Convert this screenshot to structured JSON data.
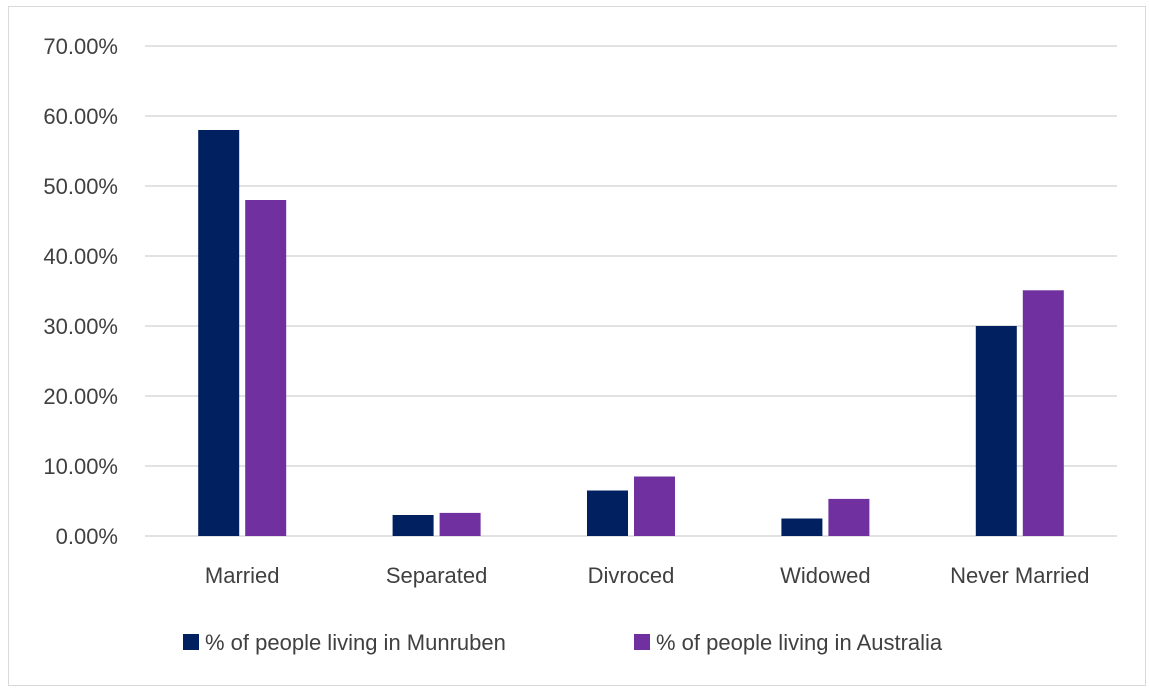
{
  "chart_data": {
    "type": "bar",
    "title": "",
    "xlabel": "",
    "ylabel": "",
    "ylim": [
      0,
      0.7
    ],
    "y_ticks": [
      {
        "value": 0.0,
        "label": "0.00%"
      },
      {
        "value": 0.1,
        "label": "10.00%"
      },
      {
        "value": 0.2,
        "label": "20.00%"
      },
      {
        "value": 0.3,
        "label": "30.00%"
      },
      {
        "value": 0.4,
        "label": "40.00%"
      },
      {
        "value": 0.5,
        "label": "50.00%"
      },
      {
        "value": 0.6,
        "label": "60.00%"
      },
      {
        "value": 0.7,
        "label": "70.00%"
      }
    ],
    "grid": true,
    "legend_position": "bottom",
    "categories": [
      "Married",
      "Separated",
      "Divroced",
      "Widowed",
      "Never Married"
    ],
    "series": [
      {
        "name": "% of people living in Munruben",
        "color": "#002060",
        "values": [
          0.58,
          0.03,
          0.065,
          0.025,
          0.3
        ]
      },
      {
        "name": "% of people living in Australia",
        "color": "#7030A0",
        "values": [
          0.48,
          0.033,
          0.085,
          0.053,
          0.351
        ]
      }
    ]
  }
}
